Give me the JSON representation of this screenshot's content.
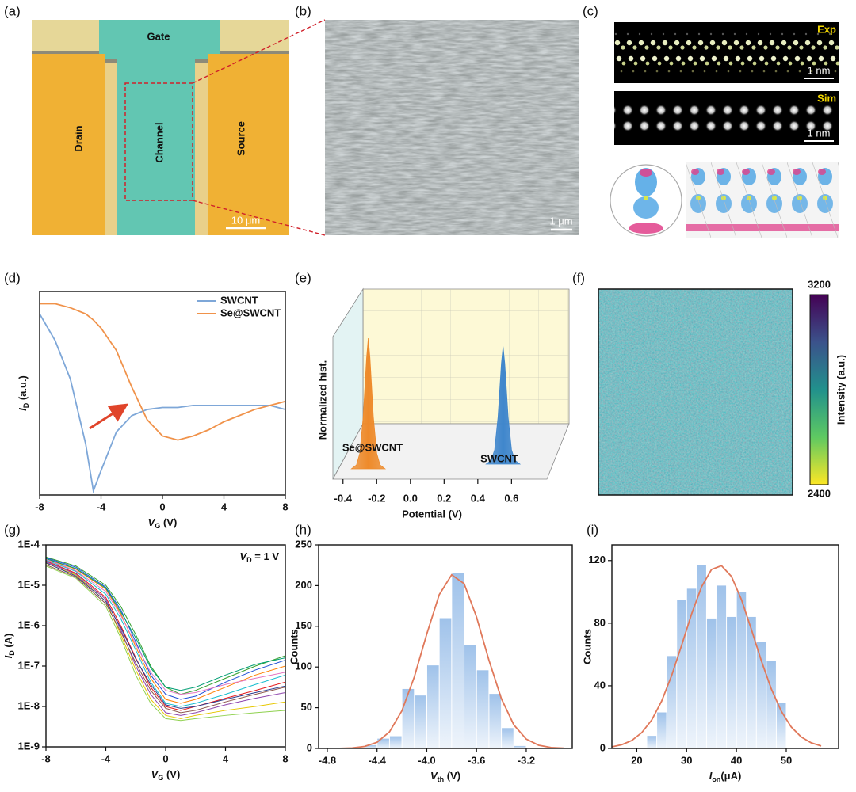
{
  "panel_labels": [
    "(a)",
    "(b)",
    "(c)",
    "(d)",
    "(e)",
    "(f)",
    "(g)",
    "(h)",
    "(i)"
  ],
  "images": {
    "a": {
      "gate": "Gate",
      "drain": "Drain",
      "channel": "Channel",
      "source": "Source",
      "scale": "10 μm"
    },
    "b": {
      "scale": "1 μm"
    },
    "c": {
      "exp": "Exp",
      "sim": "Sim",
      "scale_exp": "1 nm",
      "scale_sim": "1 nm"
    }
  },
  "chart_data": [
    {
      "type": "line",
      "xlabel": {
        "text": "V",
        "sub": "G",
        "rest": " (V)"
      },
      "ylabel": {
        "text": "I",
        "sub": "D",
        "rest": " (a.u.)"
      },
      "x": [
        -8,
        -7,
        -6,
        -5,
        -4.5,
        -4,
        -3,
        -2,
        -1,
        0,
        1,
        2,
        3,
        4,
        5,
        6,
        7,
        8
      ],
      "xlim": [
        -8,
        8
      ],
      "xticks": [
        -8,
        -4,
        0,
        4,
        8
      ],
      "ylim": [
        0,
        1
      ],
      "legend": "top-right",
      "series": [
        {
          "name": "SWCNT",
          "color": "#7ea7d8",
          "values": [
            0.89,
            0.76,
            0.57,
            0.25,
            0.02,
            0.12,
            0.31,
            0.39,
            0.42,
            0.43,
            0.43,
            0.44,
            0.44,
            0.44,
            0.44,
            0.44,
            0.44,
            0.42
          ]
        },
        {
          "name": "Se@SWCNT",
          "color": "#f0924a",
          "values": [
            0.94,
            0.94,
            0.92,
            0.89,
            0.86,
            0.82,
            0.71,
            0.53,
            0.37,
            0.29,
            0.27,
            0.29,
            0.32,
            0.36,
            0.39,
            0.42,
            0.44,
            0.46
          ]
        }
      ]
    },
    {
      "type": "area",
      "xlabel": "Potential (V)",
      "ylabel": "Normalized hist.",
      "xlim": [
        -0.46,
        0.81
      ],
      "xticks": [
        -0.4,
        -0.2,
        {
          "value": 0,
          "label": "0.0"
        },
        0.2,
        0.4,
        0.6
      ],
      "ylim": [
        0,
        1
      ],
      "series": [
        {
          "name": "Se@SWCNT",
          "color": "#ee8a2a",
          "x": [
            -0.35,
            -0.32,
            -0.3,
            -0.28,
            -0.26,
            -0.25,
            -0.24,
            -0.22,
            -0.2,
            -0.18,
            -0.15
          ],
          "values": [
            0,
            0.03,
            0.12,
            0.4,
            0.85,
            1,
            0.85,
            0.4,
            0.12,
            0.03,
            0
          ]
        },
        {
          "name": "SWCNT",
          "color": "#3f86cc",
          "x": [
            0.45,
            0.48,
            0.5,
            0.52,
            0.54,
            0.55,
            0.56,
            0.58,
            0.6,
            0.62,
            0.65
          ],
          "values": [
            0,
            0.03,
            0.11,
            0.36,
            0.77,
            0.9,
            0.77,
            0.36,
            0.11,
            0.03,
            0
          ]
        }
      ]
    },
    {
      "type": "colorbar",
      "label": "Intensity (a.u.)",
      "ylim": [
        2400,
        3200
      ],
      "yticks": [
        2400,
        3200
      ],
      "colors": [
        "#fde725",
        "#5ec962",
        "#21918c",
        "#3b528b",
        "#440154"
      ]
    },
    {
      "type": "line",
      "log_y": true,
      "xlabel": {
        "text": "V",
        "sub": "G",
        "rest": "  (V)"
      },
      "ylabel": {
        "text": "I",
        "sub": "D",
        "rest": " (A)"
      },
      "annotation": {
        "text": "V",
        "sub": "D",
        "rest": " = 1 V"
      },
      "x": [
        -8,
        -6,
        -4,
        -3,
        -2,
        -1,
        0,
        1,
        2,
        4,
        6,
        8
      ],
      "xlim": [
        -8,
        8
      ],
      "xticks": [
        -8,
        -4,
        0,
        4,
        8
      ],
      "ylim": [
        1e-09,
        0.0001
      ],
      "yticks": [
        {
          "value": 1e-09,
          "label": "1E-9"
        },
        {
          "value": 1e-08,
          "label": "1E-8"
        },
        {
          "value": 1e-07,
          "label": "1E-7"
        },
        {
          "value": 1e-06,
          "label": "1E-6"
        },
        {
          "value": 1e-05,
          "label": "1E-5"
        },
        {
          "value": 0.0001,
          "label": "1E-4"
        }
      ],
      "series": [
        {
          "color": "#e41a1c",
          "values": [
            4e-05,
            2e-05,
            5e-06,
            1e-06,
            1.6e-07,
            3e-08,
            1e-08,
            8e-09,
            1e-08,
            1.6e-08,
            2.5e-08,
            4e-08
          ]
        },
        {
          "color": "#ff7f00",
          "values": [
            4.5e-05,
            2.5e-05,
            8e-06,
            2e-06,
            3e-07,
            5e-08,
            1.5e-08,
            1.2e-08,
            1.5e-08,
            3e-08,
            6e-08,
            1e-07
          ]
        },
        {
          "color": "#e6c700",
          "values": [
            3.5e-05,
            1.8e-05,
            4e-06,
            6e-07,
            8e-08,
            1.5e-08,
            6e-09,
            5e-09,
            6e-09,
            8e-09,
            1e-08,
            1.3e-08
          ]
        },
        {
          "color": "#33a02c",
          "values": [
            5e-05,
            3e-05,
            1e-05,
            3e-06,
            6e-07,
            1e-07,
            3e-08,
            2e-08,
            2.5e-08,
            5e-08,
            1e-07,
            1.8e-07
          ]
        },
        {
          "color": "#8fd14f",
          "values": [
            3e-05,
            1.5e-05,
            3e-06,
            5e-07,
            6e-08,
            1.2e-08,
            5e-09,
            4.5e-09,
            5e-09,
            6e-09,
            7e-09,
            8e-09
          ]
        },
        {
          "color": "#17becf",
          "values": [
            4.2e-05,
            2.2e-05,
            6e-06,
            1.5e-06,
            2.5e-07,
            4e-08,
            1.2e-08,
            1e-08,
            1.2e-08,
            2e-08,
            3.5e-08,
            6e-08
          ]
        },
        {
          "color": "#1f4fd6",
          "values": [
            4.8e-05,
            2.8e-05,
            9e-06,
            2.5e-06,
            4e-07,
            6e-08,
            2e-08,
            1.5e-08,
            1.8e-08,
            4e-08,
            8e-08,
            1.4e-07
          ]
        },
        {
          "color": "#8e44ad",
          "values": [
            3.8e-05,
            1.9e-05,
            4.5e-06,
            8e-07,
            1e-07,
            2e-08,
            7e-09,
            6e-09,
            7e-09,
            1.1e-08,
            1.6e-08,
            2.2e-08
          ]
        },
        {
          "color": "#e377c2",
          "values": [
            4.4e-05,
            2.3e-05,
            7e-06,
            1.8e-06,
            3.5e-07,
            7e-08,
            2.5e-08,
            2e-08,
            2.2e-08,
            3.5e-08,
            5e-08,
            7e-08
          ]
        },
        {
          "color": "#8c564b",
          "values": [
            3.2e-05,
            1.6e-05,
            3.5e-06,
            7e-07,
            1.2e-07,
            2.5e-08,
            9e-09,
            7e-09,
            8e-09,
            1.3e-08,
            2e-08,
            3e-08
          ]
        },
        {
          "color": "#009e73",
          "values": [
            4.6e-05,
            2.6e-05,
            8.5e-06,
            2.2e-06,
            5e-07,
            9e-08,
            3e-08,
            2.5e-08,
            3e-08,
            6e-08,
            1.1e-07,
            1.6e-07
          ]
        },
        {
          "color": "#2c3e8f",
          "values": [
            3.6e-05,
            1.7e-05,
            4e-06,
            9e-07,
            1.5e-07,
            3.5e-08,
            1.1e-08,
            9e-09,
            1e-08,
            1.5e-08,
            2.2e-08,
            3.2e-08
          ]
        }
      ]
    },
    {
      "type": "histogram",
      "xlabel": {
        "text": "V",
        "sub": "th",
        "rest": " (V)"
      },
      "ylabel": "Counts",
      "bins": [
        -4.5,
        -4.4,
        -4.3,
        -4.2,
        -4.1,
        -4,
        -3.9,
        -3.8,
        -3.7,
        -3.6,
        -3.5,
        -3.4,
        -3.3,
        -3.2
      ],
      "values": [
        4,
        12,
        15,
        73,
        65,
        102,
        160,
        215,
        127,
        96,
        67,
        25,
        3
      ],
      "color": "#9fc2ea",
      "xlim": [
        -4.87,
        -2.83
      ],
      "xticks": [
        -4.8,
        -4.4,
        {
          "value": -4,
          "label": "-4.0"
        },
        -3.6,
        -3.2
      ],
      "ylim": [
        0,
        250
      ],
      "yticks": [
        0,
        50,
        100,
        150,
        200,
        250
      ],
      "fit": {
        "color": "#e0785a",
        "x": [
          -4.8,
          -4.7,
          -4.6,
          -4.5,
          -4.4,
          -4.3,
          -4.2,
          -4.1,
          -4,
          -3.9,
          -3.8,
          -3.7,
          -3.6,
          -3.5,
          -3.4,
          -3.3,
          -3.2,
          -3.1,
          -3,
          -2.9
        ],
        "values": [
          0.03,
          0.14,
          0.6,
          2.4,
          7.6,
          20.4,
          46.3,
          88,
          140.6,
          188.8,
          213.3,
          202.4,
          161.5,
          108.3,
          61.1,
          29,
          11.5,
          3.9,
          1.1,
          0.3
        ]
      }
    },
    {
      "type": "histogram",
      "xlabel": {
        "text": "I",
        "sub": "on",
        "rest": "(μA)"
      },
      "ylabel": "Counts",
      "bins": [
        22,
        24,
        26,
        28,
        30,
        32,
        34,
        36,
        38,
        40,
        42,
        44,
        46,
        48,
        50
      ],
      "values": [
        8,
        23,
        59,
        95,
        102,
        117,
        83,
        104,
        84,
        100,
        84,
        68,
        56,
        29
      ],
      "color": "#9fc2ea",
      "xlim": [
        15,
        60.5
      ],
      "xticks": [
        20,
        30,
        40,
        50
      ],
      "ylim": [
        0,
        130
      ],
      "yticks": [
        0,
        40,
        80,
        120
      ],
      "fit": {
        "color": "#e0785a",
        "x": [
          15,
          17,
          19,
          21,
          23,
          25,
          27,
          29,
          31,
          33,
          35,
          37,
          39,
          41,
          43,
          45,
          47,
          49,
          51,
          53,
          55,
          57
        ],
        "values": [
          1,
          2.4,
          5.1,
          10.1,
          18.2,
          30.3,
          46.6,
          65.9,
          85.9,
          103.2,
          114.3,
          116.7,
          109.8,
          95.1,
          76,
          56,
          38,
          23.8,
          13.7,
          7.3,
          3.6,
          1.6
        ]
      }
    }
  ]
}
